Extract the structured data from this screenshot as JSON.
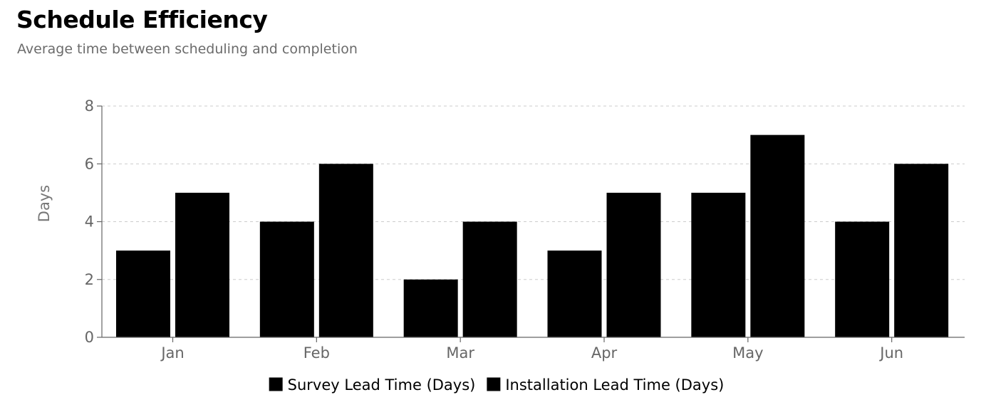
{
  "header": {
    "title": "Schedule Efficiency",
    "subtitle": "Average time between scheduling and completion"
  },
  "chart_data": {
    "type": "bar",
    "categories": [
      "Jan",
      "Feb",
      "Mar",
      "Apr",
      "May",
      "Jun"
    ],
    "series": [
      {
        "name": "Survey Lead Time (Days)",
        "values": [
          3,
          4,
          2,
          3,
          5,
          4
        ],
        "color": "#000000"
      },
      {
        "name": "Installation Lead Time (Days)",
        "values": [
          5,
          6,
          4,
          5,
          7,
          6
        ],
        "color": "#000000"
      }
    ],
    "xlabel": "",
    "ylabel": "Days",
    "ylim": [
      0,
      8
    ],
    "yticks": [
      0,
      2,
      4,
      6,
      8
    ],
    "grid": true,
    "legend_position": "bottom-center"
  }
}
